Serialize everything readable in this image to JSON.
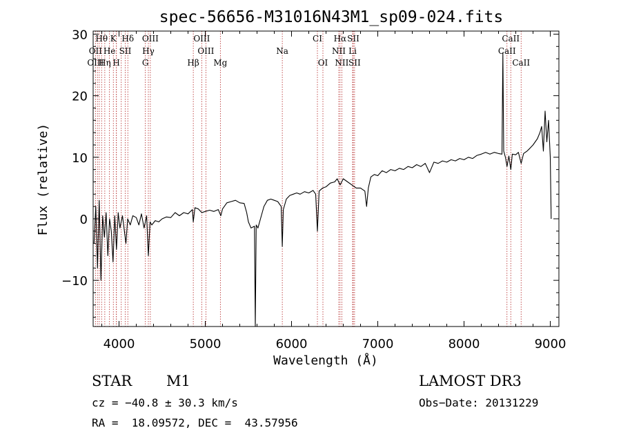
{
  "chart_data": {
    "type": "line",
    "title": "spec-56656-M31016N43M1_sp09-024.fits",
    "xlabel": "Wavelength (Å)",
    "ylabel": "Flux (relative)",
    "xlim": [
      3700,
      9100
    ],
    "ylim": [
      -17.5,
      30.5
    ],
    "xticks": [
      4000,
      5000,
      6000,
      7000,
      8000,
      9000
    ],
    "yticks": [
      -10,
      0,
      10,
      20,
      30
    ],
    "xtick_labels": [
      "4000",
      "5000",
      "6000",
      "7000",
      "8000",
      "9000"
    ],
    "ytick_labels": [
      "−10",
      "0",
      "10",
      "20",
      "30"
    ],
    "series": [
      {
        "name": "flux",
        "points": [
          [
            3710,
            -4.0
          ],
          [
            3730,
            2.0
          ],
          [
            3750,
            -8.0
          ],
          [
            3770,
            3.0
          ],
          [
            3790,
            -10.0
          ],
          [
            3810,
            0.5
          ],
          [
            3830,
            -3.0
          ],
          [
            3850,
            1.0
          ],
          [
            3870,
            -6.0
          ],
          [
            3890,
            0.0
          ],
          [
            3910,
            -2.0
          ],
          [
            3930,
            -7.0
          ],
          [
            3950,
            0.5
          ],
          [
            3970,
            -5.0
          ],
          [
            3990,
            1.0
          ],
          [
            4010,
            -1.5
          ],
          [
            4040,
            0.5
          ],
          [
            4080,
            -4.0
          ],
          [
            4100,
            0.0
          ],
          [
            4130,
            -1.0
          ],
          [
            4160,
            0.5
          ],
          [
            4200,
            0.2
          ],
          [
            4230,
            -1.0
          ],
          [
            4260,
            0.8
          ],
          [
            4290,
            -1.5
          ],
          [
            4320,
            0.5
          ],
          [
            4340,
            -6.0
          ],
          [
            4360,
            -0.5
          ],
          [
            4380,
            -1.0
          ],
          [
            4420,
            -0.3
          ],
          [
            4460,
            -0.5
          ],
          [
            4500,
            0.0
          ],
          [
            4550,
            0.3
          ],
          [
            4600,
            0.2
          ],
          [
            4650,
            1.0
          ],
          [
            4700,
            0.5
          ],
          [
            4750,
            1.0
          ],
          [
            4800,
            0.8
          ],
          [
            4850,
            1.5
          ],
          [
            4861,
            -0.5
          ],
          [
            4880,
            1.8
          ],
          [
            4920,
            1.6
          ],
          [
            4960,
            1.0
          ],
          [
            5000,
            1.2
          ],
          [
            5050,
            1.4
          ],
          [
            5100,
            1.2
          ],
          [
            5150,
            1.5
          ],
          [
            5180,
            0.5
          ],
          [
            5200,
            1.6
          ],
          [
            5250,
            2.6
          ],
          [
            5300,
            2.8
          ],
          [
            5350,
            3.0
          ],
          [
            5400,
            2.6
          ],
          [
            5450,
            2.5
          ],
          [
            5480,
            1.0
          ],
          [
            5500,
            -0.5
          ],
          [
            5530,
            -1.5
          ],
          [
            5570,
            -1.2
          ],
          [
            5580,
            -17.5
          ],
          [
            5590,
            -1.0
          ],
          [
            5610,
            -1.5
          ],
          [
            5640,
            0.0
          ],
          [
            5680,
            2.0
          ],
          [
            5720,
            3.0
          ],
          [
            5760,
            3.2
          ],
          [
            5800,
            3.0
          ],
          [
            5840,
            2.8
          ],
          [
            5880,
            2.0
          ],
          [
            5893,
            -4.5
          ],
          [
            5905,
            1.5
          ],
          [
            5940,
            3.2
          ],
          [
            5980,
            3.8
          ],
          [
            6020,
            4.0
          ],
          [
            6060,
            4.2
          ],
          [
            6100,
            4.0
          ],
          [
            6150,
            4.4
          ],
          [
            6200,
            4.2
          ],
          [
            6250,
            4.6
          ],
          [
            6280,
            4.0
          ],
          [
            6300,
            -2.0
          ],
          [
            6320,
            4.5
          ],
          [
            6360,
            5.0
          ],
          [
            6400,
            5.2
          ],
          [
            6450,
            5.8
          ],
          [
            6500,
            6.0
          ],
          [
            6530,
            6.5
          ],
          [
            6563,
            5.5
          ],
          [
            6600,
            6.5
          ],
          [
            6650,
            6.0
          ],
          [
            6700,
            5.5
          ],
          [
            6750,
            5.0
          ],
          [
            6800,
            5.0
          ],
          [
            6850,
            4.5
          ],
          [
            6870,
            2.0
          ],
          [
            6890,
            5.0
          ],
          [
            6920,
            6.8
          ],
          [
            6960,
            7.2
          ],
          [
            7000,
            7.0
          ],
          [
            7050,
            7.8
          ],
          [
            7100,
            7.5
          ],
          [
            7150,
            8.0
          ],
          [
            7200,
            7.8
          ],
          [
            7250,
            8.2
          ],
          [
            7300,
            8.0
          ],
          [
            7350,
            8.5
          ],
          [
            7400,
            8.3
          ],
          [
            7450,
            8.8
          ],
          [
            7500,
            8.5
          ],
          [
            7550,
            9.0
          ],
          [
            7600,
            7.5
          ],
          [
            7650,
            9.2
          ],
          [
            7700,
            9.0
          ],
          [
            7750,
            9.4
          ],
          [
            7800,
            9.2
          ],
          [
            7850,
            9.6
          ],
          [
            7900,
            9.4
          ],
          [
            7950,
            9.8
          ],
          [
            8000,
            9.6
          ],
          [
            8050,
            10.0
          ],
          [
            8100,
            9.8
          ],
          [
            8150,
            10.3
          ],
          [
            8200,
            10.5
          ],
          [
            8250,
            10.8
          ],
          [
            8300,
            10.5
          ],
          [
            8350,
            10.8
          ],
          [
            8400,
            10.6
          ],
          [
            8440,
            10.5
          ],
          [
            8450,
            27.0
          ],
          [
            8460,
            11.0
          ],
          [
            8480,
            10.0
          ],
          [
            8498,
            8.5
          ],
          [
            8520,
            10.2
          ],
          [
            8542,
            8.0
          ],
          [
            8560,
            10.5
          ],
          [
            8600,
            10.4
          ],
          [
            8630,
            10.8
          ],
          [
            8662,
            9.0
          ],
          [
            8690,
            10.6
          ],
          [
            8730,
            11.0
          ],
          [
            8760,
            11.4
          ],
          [
            8800,
            12.0
          ],
          [
            8850,
            13.0
          ],
          [
            8880,
            14.0
          ],
          [
            8900,
            15.0
          ],
          [
            8920,
            11.0
          ],
          [
            8940,
            17.5
          ],
          [
            8960,
            12.5
          ],
          [
            8980,
            16.0
          ],
          [
            9000,
            10.0
          ],
          [
            9010,
            0.0
          ]
        ]
      }
    ],
    "line_markers": [
      {
        "label": "Hθ",
        "wavelength": 3798,
        "row": 1
      },
      {
        "label": "K",
        "wavelength": 3934,
        "row": 1
      },
      {
        "label": "Hδ",
        "wavelength": 4102,
        "row": 1
      },
      {
        "label": "OIII",
        "wavelength": 4363,
        "row": 1
      },
      {
        "label": "OIII",
        "wavelength": 4959,
        "row": 1
      },
      {
        "label": "CI",
        "wavelength": 6300,
        "row": 1
      },
      {
        "label": "Hα",
        "wavelength": 6563,
        "row": 1
      },
      {
        "label": "SII",
        "wavelength": 6716,
        "row": 1
      },
      {
        "label": "CaII",
        "wavelength": 8542,
        "row": 1
      },
      {
        "label": "OII",
        "wavelength": 3727,
        "row": 2
      },
      {
        "label": "He",
        "wavelength": 3889,
        "row": 2
      },
      {
        "label": "SII",
        "wavelength": 4072,
        "row": 2
      },
      {
        "label": "Hγ",
        "wavelength": 4340,
        "row": 2
      },
      {
        "label": "OIII",
        "wavelength": 5007,
        "row": 2
      },
      {
        "label": "Na",
        "wavelength": 5893,
        "row": 2
      },
      {
        "label": "NII",
        "wavelength": 6548,
        "row": 2
      },
      {
        "label": "Li",
        "wavelength": 6708,
        "row": 2
      },
      {
        "label": "CaII",
        "wavelength": 8498,
        "row": 2
      },
      {
        "label": "OIII",
        "wavelength": 3727,
        "row": 3
      },
      {
        "label": "Hη",
        "wavelength": 3835,
        "row": 3
      },
      {
        "label": "H",
        "wavelength": 3969,
        "row": 3
      },
      {
        "label": "G",
        "wavelength": 4305,
        "row": 3
      },
      {
        "label": "Hβ",
        "wavelength": 4861,
        "row": 3
      },
      {
        "label": "Mg",
        "wavelength": 5175,
        "row": 3
      },
      {
        "label": "OI",
        "wavelength": 6364,
        "row": 3
      },
      {
        "label": "NII",
        "wavelength": 6583,
        "row": 3
      },
      {
        "label": "SII",
        "wavelength": 6731,
        "row": 3
      },
      {
        "label": "CaII",
        "wavelength": 8662,
        "row": 3
      }
    ],
    "extra_marker_wavelengths": [
      3750,
      3771,
      3889,
      3970,
      4026
    ],
    "colors": {
      "marker": "#b22222",
      "axes": "#000000",
      "data": "#000000"
    }
  },
  "info": {
    "object_class": "STAR",
    "subclass": "M1",
    "survey": "LAMOST DR3",
    "cz": "cz = −40.8 ± 30.3 km/s",
    "obs_date": "Obs−Date: 20131229",
    "coords": "RA =  18.09572, DEC =  43.57956"
  }
}
